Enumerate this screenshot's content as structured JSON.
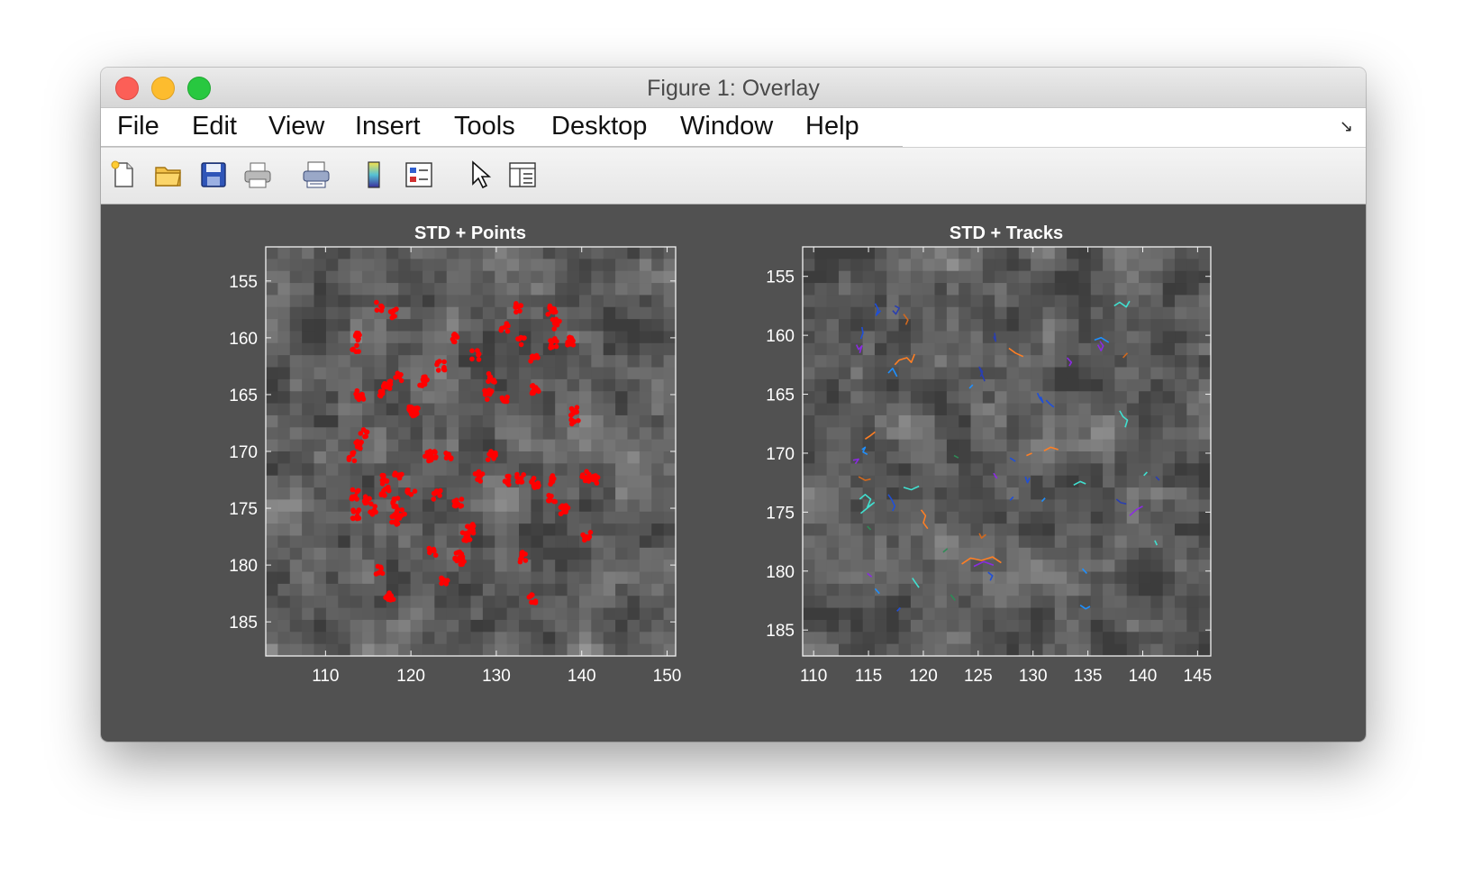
{
  "window": {
    "title": "Figure 1: Overlay"
  },
  "menu": [
    "File",
    "Edit",
    "View",
    "Insert",
    "Tools",
    "Desktop",
    "Window",
    "Help"
  ],
  "toolbar": [
    {
      "icon": "new-figure-icon"
    },
    {
      "icon": "open-file-icon"
    },
    {
      "icon": "save-icon"
    },
    {
      "icon": "print-icon"
    },
    {
      "icon": "link-plot-icon"
    },
    {
      "icon": "insert-colorbar-icon"
    },
    {
      "icon": "insert-legend-icon"
    },
    {
      "icon": "edit-plot-pointer-icon"
    },
    {
      "icon": "property-inspector-icon"
    }
  ],
  "colors": {
    "figure_bg": "#515151",
    "points": "#ff0000",
    "axes_text": "#ffffff"
  },
  "chart_data": [
    {
      "type": "scatter",
      "title": "STD + Points",
      "background": "grayscale standard-deviation image",
      "xlim": [
        103,
        151
      ],
      "ylim": [
        152,
        188
      ],
      "y_reversed": true,
      "xticks": [
        110,
        120,
        130,
        140,
        150
      ],
      "yticks": [
        155,
        160,
        165,
        170,
        175,
        180,
        185
      ],
      "series": [
        {
          "color": "#ff0000",
          "x": [
            116.3,
            118,
            113.5,
            113.8,
            118.5,
            117.2,
            116.5,
            121.5,
            114,
            120.5,
            123.5,
            125.3,
            127.5,
            129.5,
            132.5,
            131,
            133,
            136.5,
            137,
            136.8,
            138.8,
            134.5,
            139,
            139.2,
            134.5,
            131,
            129,
            120.2,
            122.5,
            113.8,
            114.5,
            113.2,
            113.5,
            115,
            117,
            118,
            120,
            116.8,
            118.5,
            113.5,
            115.5,
            118,
            118.8,
            122,
            124.5,
            123,
            125.5,
            126.5,
            127,
            128,
            129.5,
            131,
            132.8,
            134.5,
            136.5,
            138,
            140.5,
            141.5,
            136.8,
            140.6,
            133,
            134.2,
            125.5,
            126,
            122.5,
            124,
            116.2,
            117.5
          ],
          "y": [
            157.2,
            157.9,
            161,
            159.8,
            163.5,
            164.2,
            164.8,
            163.8,
            165,
            166.5,
            162.5,
            160,
            161.5,
            163.5,
            157.3,
            159,
            160.2,
            157.5,
            158.8,
            160.5,
            160.2,
            162,
            166.5,
            167.5,
            164.5,
            165.5,
            165,
            166.5,
            170.4,
            169.4,
            168.5,
            170.5,
            173.8,
            174.2,
            173.5,
            174.5,
            173.6,
            172.5,
            172,
            175.5,
            175.2,
            176,
            175.5,
            170.4,
            170.5,
            173.8,
            174.5,
            177.5,
            176.8,
            172.2,
            170.4,
            172.5,
            172.4,
            172.8,
            174.3,
            175.2,
            172.2,
            172.4,
            172.5,
            177.5,
            179.3,
            183,
            179.2,
            179.5,
            178.8,
            181.5,
            180.5,
            182.8
          ]
        }
      ]
    },
    {
      "type": "line",
      "title": "STD + Tracks",
      "background": "grayscale standard-deviation image",
      "xlim": [
        109,
        146.2
      ],
      "ylim": [
        152.5,
        187.2
      ],
      "y_reversed": true,
      "xticks": [
        110,
        115,
        120,
        125,
        130,
        135,
        140,
        145
      ],
      "yticks": [
        155,
        160,
        165,
        170,
        175,
        180,
        185
      ],
      "series": [
        {
          "color": "#1f4fd8",
          "x": [
            115.6,
            115.9,
            115.7,
            116.1
          ],
          "y": [
            157.3,
            157.8,
            158.3,
            157.9
          ]
        },
        {
          "color": "#2a3fb0",
          "x": [
            117.2,
            117.5,
            117.8,
            117.4
          ],
          "y": [
            157.9,
            158.2,
            157.7,
            157.5
          ]
        },
        {
          "color": "#d2691e",
          "x": [
            118.2,
            118.6,
            118.4
          ],
          "y": [
            158.2,
            158.7,
            159.1
          ]
        },
        {
          "color": "#1f4fd8",
          "x": [
            114.4,
            114.5,
            114.3
          ],
          "y": [
            159.3,
            159.8,
            160.3
          ]
        },
        {
          "color": "#8a2be2",
          "x": [
            113.9,
            114.1,
            114.4,
            114.2
          ],
          "y": [
            160.8,
            161.2,
            160.9,
            161.5
          ]
        },
        {
          "color": "#ff7f24",
          "x": [
            117.4,
            117.8,
            118.5,
            118.9,
            119.2
          ],
          "y": [
            162.5,
            162.1,
            161.9,
            162.3,
            161.6
          ]
        },
        {
          "color": "#1e90ff",
          "x": [
            116.8,
            117.2,
            117.6
          ],
          "y": [
            163.2,
            162.8,
            163.5
          ]
        },
        {
          "color": "#2a3fb0",
          "x": [
            126.4,
            126.6,
            126.5
          ],
          "y": [
            160.1,
            160.5,
            159.8
          ]
        },
        {
          "color": "#ff7f24",
          "x": [
            127.8,
            128.4,
            129.1
          ],
          "y": [
            161.1,
            161.5,
            161.8
          ]
        },
        {
          "color": "#2a3fb0",
          "x": [
            125.2,
            125.4,
            125.1,
            125.6
          ],
          "y": [
            163.5,
            163.1,
            162.7,
            163.9
          ]
        },
        {
          "color": "#1e90ff",
          "x": [
            124.2,
            124.5
          ],
          "y": [
            164.5,
            164.2
          ]
        },
        {
          "color": "#40e0d0",
          "x": [
            137.4,
            137.9,
            138.5,
            138.8
          ],
          "y": [
            157.5,
            157.2,
            157.6,
            157.1
          ]
        },
        {
          "color": "#1e90ff",
          "x": [
            135.6,
            136.2,
            136.9
          ],
          "y": [
            160.4,
            160.2,
            160.6
          ]
        },
        {
          "color": "#8a2be2",
          "x": [
            135.9,
            136.2,
            136.4,
            136.1
          ],
          "y": [
            160.8,
            161.3,
            160.9,
            160.5
          ]
        },
        {
          "color": "#d2691e",
          "x": [
            138.2,
            138.6
          ],
          "y": [
            161.9,
            161.5
          ]
        },
        {
          "color": "#8a2be2",
          "x": [
            133.1,
            133.5,
            133.3
          ],
          "y": [
            161.9,
            162.3,
            162.6
          ]
        },
        {
          "color": "#1f4fd8",
          "x": [
            130.4,
            130.6,
            130.9,
            130.7
          ],
          "y": [
            164.9,
            165.3,
            165.7,
            165.2
          ]
        },
        {
          "color": "#1f4fd8",
          "x": [
            131.2,
            131.5,
            131.9
          ],
          "y": [
            165.5,
            165.8,
            166.1
          ]
        },
        {
          "color": "#40e0d0",
          "x": [
            137.9,
            138.2,
            138.6,
            138.4
          ],
          "y": [
            166.4,
            166.9,
            167.2,
            167.8
          ]
        },
        {
          "color": "#1e90ff",
          "x": [
            114.4,
            114.7,
            114.5,
            114.9
          ],
          "y": [
            169.7,
            169.5,
            169.9,
            170.1
          ]
        },
        {
          "color": "#ff7f24",
          "x": [
            114.7,
            115.2,
            115.6
          ],
          "y": [
            168.8,
            168.5,
            168.2
          ]
        },
        {
          "color": "#8a2be2",
          "x": [
            113.8,
            114.1,
            113.6
          ],
          "y": [
            170.9,
            170.5,
            170.6
          ]
        },
        {
          "color": "#d2691e",
          "x": [
            114.1,
            114.7,
            115.2
          ],
          "y": [
            172.0,
            172.3,
            172.2
          ]
        },
        {
          "color": "#40e0d0",
          "x": [
            114.2,
            114.7,
            115.2,
            114.9,
            115.5,
            114.3
          ],
          "y": [
            173.9,
            173.5,
            173.9,
            174.6,
            174.2,
            175.1
          ]
        },
        {
          "color": "#1f4fd8",
          "x": [
            116.8,
            117.1,
            117.4,
            117.2
          ],
          "y": [
            173.5,
            173.9,
            174.5,
            174.9
          ]
        },
        {
          "color": "#40e0d0",
          "x": [
            118.2,
            118.9,
            119.6
          ],
          "y": [
            172.9,
            173.1,
            172.8
          ]
        },
        {
          "color": "#ff7f24",
          "x": [
            119.8,
            120.2,
            120.0,
            120.4
          ],
          "y": [
            174.8,
            175.3,
            175.9,
            176.4
          ]
        },
        {
          "color": "#2e8b57",
          "x": [
            122.8,
            123.2
          ],
          "y": [
            170.2,
            170.4
          ]
        },
        {
          "color": "#ff7f24",
          "x": [
            129.4,
            129.9
          ],
          "y": [
            170.2,
            170.0
          ]
        },
        {
          "color": "#ff7f24",
          "x": [
            131.0,
            131.6,
            132.3
          ],
          "y": [
            169.8,
            169.5,
            169.7
          ]
        },
        {
          "color": "#1f4fd8",
          "x": [
            127.9,
            128.4
          ],
          "y": [
            170.4,
            170.7
          ]
        },
        {
          "color": "#8a2be2",
          "x": [
            126.4,
            126.7,
            126.5
          ],
          "y": [
            171.7,
            172.1,
            171.9
          ]
        },
        {
          "color": "#1f4fd8",
          "x": [
            129.3,
            129.5,
            129.7
          ],
          "y": [
            172.0,
            172.5,
            172.1
          ]
        },
        {
          "color": "#40e0d0",
          "x": [
            133.7,
            134.3,
            134.8
          ],
          "y": [
            172.7,
            172.4,
            172.6
          ]
        },
        {
          "color": "#1f4fd8",
          "x": [
            127.9,
            128.2
          ],
          "y": [
            174.0,
            173.7
          ]
        },
        {
          "color": "#1e90ff",
          "x": [
            130.8,
            131.1
          ],
          "y": [
            174.1,
            173.8
          ]
        },
        {
          "color": "#2a3fb0",
          "x": [
            137.6,
            138.0,
            138.5
          ],
          "y": [
            173.9,
            174.2,
            174.3
          ]
        },
        {
          "color": "#8a2be2",
          "x": [
            138.8,
            139.4,
            140.0
          ],
          "y": [
            175.3,
            174.8,
            174.5
          ]
        },
        {
          "color": "#40e0d0",
          "x": [
            140.1,
            140.4
          ],
          "y": [
            171.9,
            171.6
          ]
        },
        {
          "color": "#2a3fb0",
          "x": [
            141.2,
            141.5
          ],
          "y": [
            172.0,
            172.3
          ]
        },
        {
          "color": "#40e0d0",
          "x": [
            141.1,
            141.3
          ],
          "y": [
            177.4,
            177.8
          ]
        },
        {
          "color": "#d2691e",
          "x": [
            125.1,
            125.3,
            125.7
          ],
          "y": [
            176.8,
            177.2,
            176.9
          ]
        },
        {
          "color": "#ff7f24",
          "x": [
            123.5,
            124.3,
            125.3,
            126.3,
            127.1
          ],
          "y": [
            179.4,
            178.9,
            179.1,
            178.8,
            179.3
          ]
        },
        {
          "color": "#8a2be2",
          "x": [
            124.6,
            125.5,
            126.4
          ],
          "y": [
            179.6,
            179.2,
            179.5
          ]
        },
        {
          "color": "#1f4fd8",
          "x": [
            125.9,
            126.3,
            126.1
          ],
          "y": [
            180.1,
            180.4,
            180.8
          ]
        },
        {
          "color": "#40e0d0",
          "x": [
            119.0,
            119.3,
            119.6
          ],
          "y": [
            180.6,
            181.0,
            181.4
          ]
        },
        {
          "color": "#2e8b57",
          "x": [
            121.8,
            122.2
          ],
          "y": [
            178.4,
            178.1
          ]
        },
        {
          "color": "#1e90ff",
          "x": [
            115.6,
            116.0
          ],
          "y": [
            181.5,
            181.9
          ]
        },
        {
          "color": "#8a2be2",
          "x": [
            114.9,
            115.3
          ],
          "y": [
            180.2,
            180.5
          ]
        },
        {
          "color": "#1e90ff",
          "x": [
            134.5,
            134.9
          ],
          "y": [
            179.8,
            180.2
          ]
        },
        {
          "color": "#1e90ff",
          "x": [
            134.3,
            134.8,
            135.2
          ],
          "y": [
            182.9,
            183.2,
            183.0
          ]
        },
        {
          "color": "#1f4fd8",
          "x": [
            117.6,
            117.9
          ],
          "y": [
            183.4,
            183.1
          ]
        },
        {
          "color": "#2e8b57",
          "x": [
            122.5,
            122.9
          ],
          "y": [
            182.0,
            182.5
          ]
        },
        {
          "color": "#2e8b57",
          "x": [
            114.9,
            115.2
          ],
          "y": [
            176.2,
            176.5
          ]
        }
      ]
    }
  ]
}
